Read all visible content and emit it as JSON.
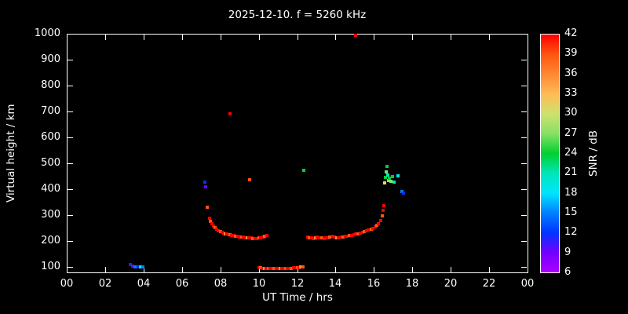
{
  "title": "2025-12-10. f = 5260 kHz",
  "colors": {
    "background": "#000000",
    "axis": "#ffffff",
    "text": "#ffffff"
  },
  "chart_data": {
    "type": "scatter",
    "title": "2025-12-10. f = 5260 kHz",
    "xlabel": "UT Time / hrs",
    "ylabel": "Virtual height / km",
    "colorbar_label": "SNR / dB",
    "grid": false,
    "legend": "colorbar-right",
    "xlim": [
      0,
      24
    ],
    "ylim": [
      79,
      1000
    ],
    "x_ticks": [
      0,
      2,
      4,
      6,
      8,
      10,
      12,
      14,
      16,
      18,
      20,
      22,
      24
    ],
    "x_tick_labels": [
      "00",
      "02",
      "04",
      "06",
      "08",
      "10",
      "12",
      "14",
      "16",
      "18",
      "20",
      "22",
      "00"
    ],
    "y_ticks": [
      100,
      200,
      300,
      400,
      500,
      600,
      700,
      800,
      900,
      1000
    ],
    "snr_scale": {
      "min": 6,
      "max": 42,
      "ticks": [
        6,
        9,
        12,
        15,
        18,
        21,
        24,
        27,
        30,
        33,
        36,
        39,
        42
      ],
      "colors": [
        {
          "v": 6,
          "c": "#aa00ff"
        },
        {
          "v": 9,
          "c": "#7300ff"
        },
        {
          "v": 12,
          "c": "#0033ff"
        },
        {
          "v": 15,
          "c": "#0080ff"
        },
        {
          "v": 18,
          "c": "#00e5ff"
        },
        {
          "v": 21,
          "c": "#00e6b8"
        },
        {
          "v": 24,
          "c": "#00d030"
        },
        {
          "v": 27,
          "c": "#88e066"
        },
        {
          "v": 30,
          "c": "#cde26e"
        },
        {
          "v": 33,
          "c": "#ffbb55"
        },
        {
          "v": 36,
          "c": "#ff8833"
        },
        {
          "v": 39,
          "c": "#ff5511"
        },
        {
          "v": 42,
          "c": "#ff0000"
        }
      ]
    },
    "points_format": "[ut_time_hours, virtual_height_km, snr_db]",
    "points": [
      [
        3.3,
        108,
        12
      ],
      [
        3.45,
        103,
        9
      ],
      [
        3.55,
        100,
        15
      ],
      [
        3.7,
        99,
        12
      ],
      [
        3.85,
        99,
        18
      ],
      [
        3.95,
        100,
        15
      ],
      [
        7.18,
        428,
        12
      ],
      [
        7.22,
        408,
        9
      ],
      [
        7.3,
        332,
        39
      ],
      [
        7.42,
        288,
        42
      ],
      [
        7.5,
        276,
        39
      ],
      [
        7.58,
        267,
        42
      ],
      [
        7.66,
        259,
        42
      ],
      [
        7.74,
        252,
        39
      ],
      [
        7.82,
        246,
        42
      ],
      [
        7.9,
        241,
        42
      ],
      [
        8.0,
        237,
        39
      ],
      [
        8.08,
        234,
        42
      ],
      [
        8.16,
        231,
        42
      ],
      [
        8.24,
        229,
        36
      ],
      [
        8.34,
        227,
        42
      ],
      [
        8.42,
        225,
        42
      ],
      [
        8.5,
        224,
        39
      ],
      [
        8.6,
        222,
        42
      ],
      [
        8.7,
        221,
        42
      ],
      [
        8.8,
        219,
        39
      ],
      [
        8.9,
        218,
        42
      ],
      [
        9.0,
        216,
        42
      ],
      [
        9.1,
        215,
        39
      ],
      [
        9.2,
        214,
        42
      ],
      [
        9.3,
        213,
        42
      ],
      [
        9.4,
        212,
        36
      ],
      [
        9.5,
        212,
        42
      ],
      [
        9.6,
        211,
        42
      ],
      [
        9.7,
        210,
        39
      ],
      [
        9.8,
        210,
        42
      ],
      [
        9.9,
        209,
        42
      ],
      [
        10.0,
        211,
        39
      ],
      [
        10.1,
        213,
        42
      ],
      [
        10.2,
        215,
        42
      ],
      [
        10.32,
        218,
        39
      ],
      [
        10.42,
        221,
        42
      ],
      [
        8.5,
        690,
        42
      ],
      [
        9.52,
        437,
        39
      ],
      [
        10.0,
        97,
        42
      ],
      [
        10.1,
        96,
        39
      ],
      [
        10.2,
        95,
        42
      ],
      [
        10.3,
        95,
        36
      ],
      [
        10.4,
        94,
        42
      ],
      [
        10.5,
        94,
        39
      ],
      [
        10.6,
        94,
        42
      ],
      [
        10.7,
        94,
        42
      ],
      [
        10.8,
        94,
        39
      ],
      [
        10.9,
        94,
        42
      ],
      [
        11.0,
        94,
        42
      ],
      [
        11.1,
        94,
        36
      ],
      [
        11.2,
        94,
        42
      ],
      [
        11.3,
        94,
        42
      ],
      [
        11.4,
        95,
        39
      ],
      [
        11.5,
        95,
        42
      ],
      [
        11.6,
        95,
        42
      ],
      [
        11.7,
        95,
        39
      ],
      [
        11.8,
        96,
        42
      ],
      [
        11.9,
        96,
        42
      ],
      [
        12.0,
        97,
        39
      ],
      [
        12.1,
        98,
        42
      ],
      [
        12.2,
        99,
        36
      ],
      [
        12.3,
        100,
        39
      ],
      [
        12.35,
        473,
        24
      ],
      [
        12.55,
        215,
        42
      ],
      [
        12.65,
        213,
        39
      ],
      [
        12.75,
        211,
        42
      ],
      [
        12.85,
        210,
        42
      ],
      [
        12.95,
        212,
        36
      ],
      [
        13.05,
        214,
        42
      ],
      [
        13.15,
        213,
        42
      ],
      [
        13.3,
        211,
        39
      ],
      [
        13.4,
        210,
        42
      ],
      [
        13.5,
        211,
        42
      ],
      [
        13.6,
        213,
        42
      ],
      [
        13.7,
        215,
        39
      ],
      [
        13.85,
        217,
        42
      ],
      [
        13.95,
        215,
        42
      ],
      [
        14.05,
        213,
        36
      ],
      [
        14.15,
        212,
        42
      ],
      [
        14.3,
        214,
        42
      ],
      [
        14.4,
        216,
        39
      ],
      [
        14.5,
        218,
        42
      ],
      [
        14.6,
        220,
        42
      ],
      [
        14.7,
        222,
        39
      ],
      [
        14.85,
        221,
        42
      ],
      [
        14.95,
        224,
        42
      ],
      [
        15.05,
        227,
        42
      ],
      [
        15.15,
        229,
        39
      ],
      [
        15.3,
        231,
        42
      ],
      [
        15.4,
        234,
        42
      ],
      [
        15.5,
        237,
        39
      ],
      [
        15.6,
        240,
        42
      ],
      [
        15.7,
        243,
        42
      ],
      [
        15.85,
        247,
        39
      ],
      [
        15.95,
        250,
        42
      ],
      [
        16.05,
        255,
        42
      ],
      [
        16.15,
        261,
        39
      ],
      [
        16.25,
        268,
        42
      ],
      [
        16.35,
        280,
        42
      ],
      [
        16.42,
        298,
        39
      ],
      [
        16.48,
        318,
        42
      ],
      [
        16.52,
        338,
        42
      ],
      [
        15.05,
        995,
        42
      ],
      [
        16.55,
        425,
        30
      ],
      [
        16.6,
        445,
        24
      ],
      [
        16.62,
        468,
        27
      ],
      [
        16.68,
        488,
        24
      ],
      [
        16.7,
        455,
        21
      ],
      [
        16.76,
        435,
        27
      ],
      [
        16.82,
        442,
        24
      ],
      [
        16.9,
        430,
        27
      ],
      [
        16.96,
        448,
        24
      ],
      [
        17.05,
        428,
        21
      ],
      [
        17.25,
        452,
        18
      ],
      [
        17.45,
        392,
        15
      ],
      [
        17.55,
        385,
        12
      ]
    ]
  }
}
